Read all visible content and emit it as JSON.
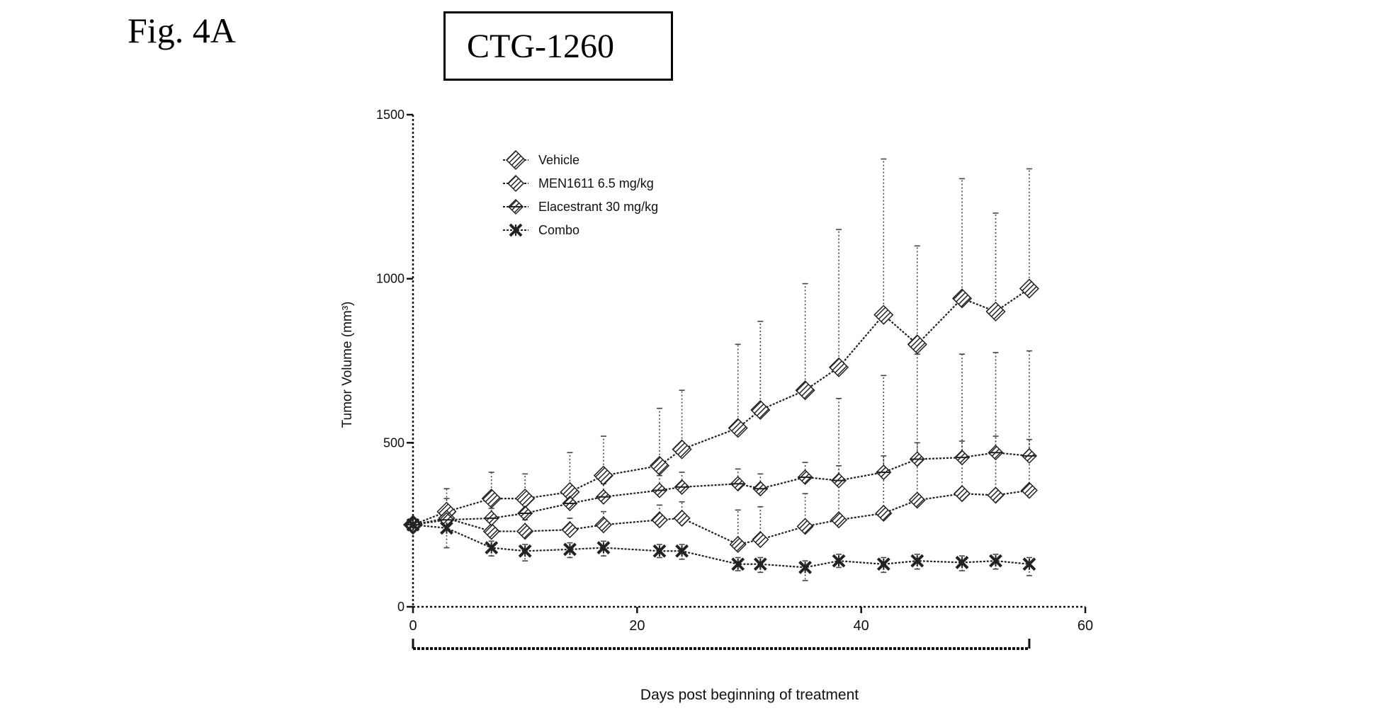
{
  "figure_label": "Fig. 4A",
  "chart_data": {
    "type": "line",
    "title": "CTG-1260",
    "xlabel": "Days post beginning of treatment",
    "ylabel": "Tumor Volume (mm³)",
    "xlim": [
      0,
      60
    ],
    "ylim": [
      0,
      1500
    ],
    "xticks": [
      0,
      20,
      40,
      60
    ],
    "yticks": [
      0,
      500,
      1000,
      1500
    ],
    "grid": false,
    "legend_position": "top-left",
    "treatment_bracket": [
      0,
      55
    ],
    "series": [
      {
        "name": "Vehicle",
        "x": [
          0,
          3,
          7,
          10,
          14,
          17,
          22,
          24,
          29,
          31,
          35,
          38,
          42,
          45,
          49,
          52,
          55
        ],
        "y": [
          250,
          290,
          330,
          330,
          350,
          400,
          430,
          480,
          545,
          600,
          660,
          730,
          890,
          800,
          940,
          900,
          970
        ],
        "err_upper": [
          250,
          360,
          410,
          405,
          470,
          520,
          605,
          660,
          800,
          870,
          985,
          1150,
          1365,
          1100,
          1305,
          1200,
          1335
        ]
      },
      {
        "name": "MEN1611 6.5 mg/kg",
        "x": [
          0,
          3,
          7,
          10,
          14,
          17,
          22,
          24,
          29,
          31,
          35,
          38,
          42,
          45,
          49,
          52,
          55
        ],
        "y": [
          250,
          270,
          230,
          230,
          235,
          250,
          265,
          270,
          190,
          205,
          245,
          265,
          285,
          325,
          345,
          340,
          355
        ],
        "err_upper": [
          250,
          330,
          265,
          265,
          270,
          290,
          310,
          320,
          295,
          305,
          345,
          635,
          705,
          770,
          770,
          775,
          780
        ]
      },
      {
        "name": "Elacestrant 30 mg/kg",
        "x": [
          0,
          3,
          7,
          10,
          14,
          17,
          22,
          24,
          29,
          31,
          35,
          38,
          42,
          45,
          49,
          52,
          55
        ],
        "y": [
          250,
          265,
          270,
          285,
          315,
          335,
          355,
          365,
          375,
          360,
          395,
          385,
          410,
          450,
          455,
          470,
          460
        ],
        "err_upper": [
          250,
          300,
          300,
          320,
          355,
          375,
          400,
          410,
          420,
          405,
          440,
          430,
          460,
          500,
          505,
          520,
          510
        ]
      },
      {
        "name": "Combo",
        "x": [
          0,
          3,
          7,
          10,
          14,
          17,
          22,
          24,
          29,
          31,
          35,
          38,
          42,
          45,
          49,
          52,
          55
        ],
        "y": [
          250,
          240,
          180,
          170,
          175,
          180,
          170,
          170,
          130,
          130,
          120,
          140,
          130,
          140,
          135,
          140,
          130
        ],
        "err_upper": [
          250,
          270,
          200,
          190,
          195,
          200,
          190,
          190,
          150,
          150,
          140,
          160,
          150,
          160,
          155,
          160,
          150
        ],
        "err_lower": [
          250,
          180,
          155,
          140,
          150,
          155,
          150,
          145,
          110,
          105,
          80,
          120,
          105,
          115,
          110,
          115,
          95
        ]
      }
    ]
  }
}
